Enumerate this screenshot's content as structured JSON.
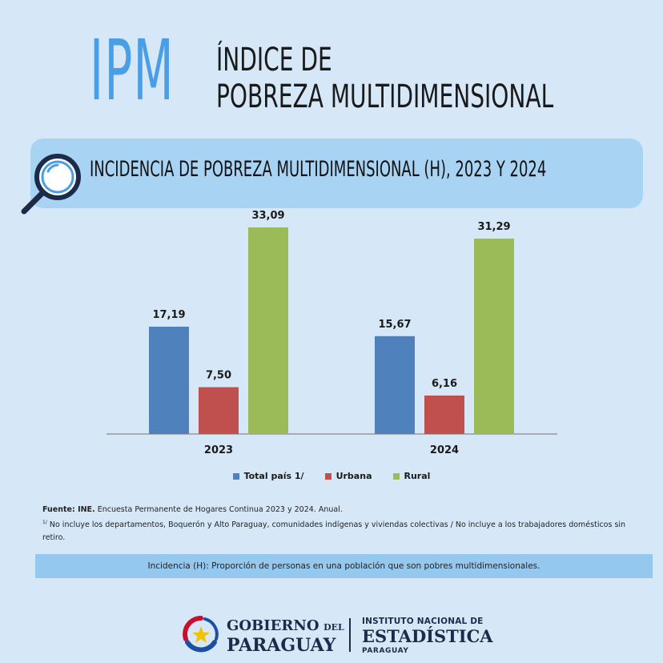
{
  "header": {
    "ipm": "IPM",
    "title_line1": "ÍNDICE DE",
    "title_line2": "POBREZA MULTIDIMENSIONAL"
  },
  "banner": {
    "title": "INCIDENCIA DE POBREZA MULTIDIMENSIONAL (H), 2023 Y 2024",
    "icon": "magnifier-icon"
  },
  "colors": {
    "background": "#d6e8f7",
    "banner": "#a8d3f3",
    "accent": "#4a9ee6",
    "total": "#4f81bd",
    "urbana": "#c0504d",
    "rural": "#9bbb59"
  },
  "chart_data": {
    "type": "bar",
    "categories": [
      "2023",
      "2024"
    ],
    "series": [
      {
        "name": "Total país 1/",
        "values": [
          17.19,
          15.67
        ],
        "labels": [
          "17,19",
          "15,67"
        ]
      },
      {
        "name": "Urbana",
        "values": [
          7.5,
          6.16
        ],
        "labels": [
          "7,50",
          "6,16"
        ]
      },
      {
        "name": "Rural",
        "values": [
          33.09,
          31.29
        ],
        "labels": [
          "33,09",
          "31,29"
        ]
      }
    ],
    "ylim": [
      0,
      35
    ],
    "grid": false,
    "legend_position": "bottom"
  },
  "notes": {
    "source_label": "Fuente: INE.",
    "source_text": " Encuesta Permanente de Hogares Continua 2023 y 2024. Anual.",
    "footnote_mark": "1/",
    "footnote_text": " No incluye los departamentos, Boquerón y Alto Paraguay, comunidades indígenas y viviendas colectivas / No incluye a los trabajadores domésticos sin retiro."
  },
  "definition": "Incidencia (H): Proporción de personas en una población que son pobres multidimensionales.",
  "footer": {
    "gob_line1": "GOBIERNO",
    "gob_del": "DEL",
    "gob_line2": "PARAGUAY",
    "ine_line1": "INSTITUTO NACIONAL DE",
    "ine_line2": "ESTADÍSTICA",
    "ine_line3": "PARAGUAY"
  }
}
